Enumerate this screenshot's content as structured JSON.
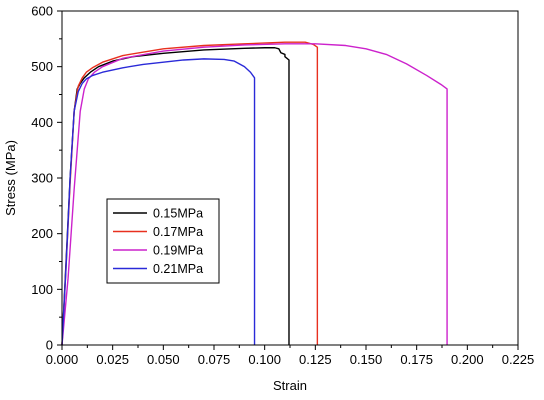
{
  "chart_data": {
    "type": "line",
    "title": "",
    "xlabel": "Strain",
    "ylabel": "Stress (MPa)",
    "xlim": [
      0.0,
      0.225
    ],
    "ylim": [
      0,
      600
    ],
    "x_ticks": [
      "0.000",
      "0.025",
      "0.050",
      "0.075",
      "0.100",
      "0.125",
      "0.150",
      "0.175",
      "0.200",
      "0.225"
    ],
    "y_ticks": [
      "0",
      "100",
      "200",
      "300",
      "400",
      "500",
      "600"
    ],
    "x_tick_values": [
      0,
      0.025,
      0.05,
      0.075,
      0.1,
      0.125,
      0.15,
      0.175,
      0.2,
      0.225
    ],
    "y_tick_values": [
      0,
      100,
      200,
      300,
      400,
      500,
      600
    ],
    "grid": false,
    "legend_position": "lower-left inside",
    "series": [
      {
        "name": "0.15MPa",
        "color": "#000000",
        "x": [
          0.0,
          0.002,
          0.004,
          0.006,
          0.0075,
          0.009,
          0.011,
          0.014,
          0.018,
          0.025,
          0.035,
          0.05,
          0.07,
          0.09,
          0.1,
          0.105,
          0.107,
          0.108,
          0.11,
          0.11,
          0.112,
          0.112
        ],
        "y": [
          0,
          150,
          300,
          420,
          460,
          470,
          480,
          490,
          500,
          510,
          518,
          524,
          530,
          533,
          534,
          534,
          532,
          525,
          522,
          518,
          512,
          0
        ]
      },
      {
        "name": "0.17MPa",
        "color": "#e8301f",
        "x": [
          0.0,
          0.002,
          0.004,
          0.006,
          0.008,
          0.01,
          0.012,
          0.015,
          0.02,
          0.03,
          0.05,
          0.07,
          0.09,
          0.11,
          0.12,
          0.124,
          0.126,
          0.126
        ],
        "y": [
          0,
          140,
          290,
          420,
          465,
          480,
          490,
          498,
          508,
          520,
          532,
          538,
          541,
          544,
          544,
          540,
          535,
          0
        ]
      },
      {
        "name": "0.19MPa",
        "color": "#cc22cc",
        "x": [
          0.0,
          0.003,
          0.006,
          0.009,
          0.011,
          0.013,
          0.016,
          0.02,
          0.03,
          0.05,
          0.07,
          0.09,
          0.11,
          0.125,
          0.14,
          0.15,
          0.16,
          0.17,
          0.18,
          0.187,
          0.19,
          0.19
        ],
        "y": [
          0,
          120,
          280,
          420,
          460,
          478,
          490,
          500,
          515,
          528,
          535,
          539,
          541,
          541,
          538,
          532,
          522,
          505,
          484,
          468,
          460,
          0
        ]
      },
      {
        "name": "0.21MPa",
        "color": "#2a2ad8",
        "x": [
          0.0,
          0.002,
          0.004,
          0.006,
          0.008,
          0.01,
          0.012,
          0.015,
          0.02,
          0.03,
          0.04,
          0.05,
          0.06,
          0.07,
          0.08,
          0.085,
          0.09,
          0.093,
          0.095,
          0.095
        ],
        "y": [
          0,
          140,
          300,
          420,
          455,
          470,
          478,
          484,
          490,
          498,
          504,
          508,
          512,
          514,
          513,
          510,
          500,
          490,
          480,
          0
        ]
      }
    ]
  }
}
